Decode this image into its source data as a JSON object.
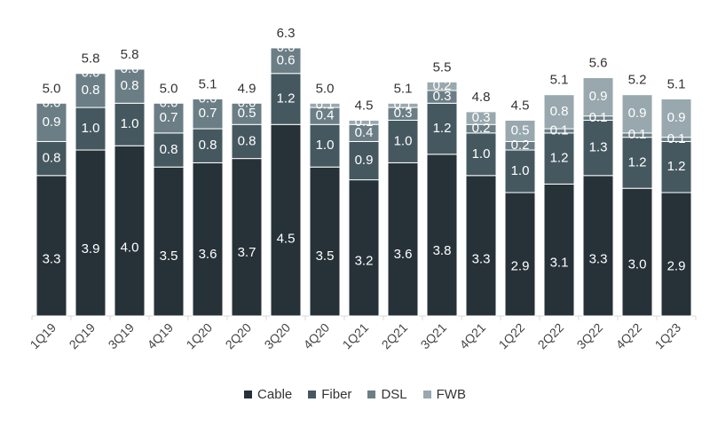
{
  "chart_data": {
    "type": "bar",
    "stacked": true,
    "categories": [
      "1Q19",
      "2Q19",
      "3Q19",
      "4Q19",
      "1Q20",
      "2Q20",
      "3Q20",
      "4Q20",
      "1Q21",
      "2Q21",
      "3Q21",
      "4Q21",
      "1Q22",
      "2Q22",
      "3Q22",
      "4Q22",
      "1Q23"
    ],
    "series": [
      {
        "name": "Cable",
        "color": "#263238",
        "values": [
          3.3,
          3.9,
          4.0,
          3.5,
          3.6,
          3.7,
          4.5,
          3.5,
          3.2,
          3.6,
          3.8,
          3.3,
          2.9,
          3.1,
          3.3,
          3.0,
          2.9
        ]
      },
      {
        "name": "Fiber",
        "color": "#46585f",
        "values": [
          0.8,
          1.0,
          1.0,
          0.8,
          0.8,
          0.8,
          1.2,
          1.0,
          0.9,
          1.0,
          1.2,
          1.0,
          1.0,
          1.2,
          1.3,
          1.2,
          1.2
        ]
      },
      {
        "name": "DSL",
        "color": "#6b7e86",
        "values": [
          0.9,
          0.8,
          0.8,
          0.7,
          0.7,
          0.5,
          0.6,
          0.4,
          0.4,
          0.3,
          0.3,
          0.2,
          0.2,
          0.1,
          0.1,
          0.1,
          0.1
        ]
      },
      {
        "name": "FWB",
        "color": "#98a8ae",
        "values": [
          0.0,
          0.0,
          0.0,
          0.0,
          0.0,
          0.0,
          0.0,
          0.1,
          0.1,
          0.1,
          0.2,
          0.3,
          0.5,
          0.8,
          0.9,
          0.9,
          0.9
        ]
      }
    ],
    "totals": [
      "5.0",
      "5.8",
      "5.8",
      "5.0",
      "5.1",
      "4.9",
      "6.3",
      "5.0",
      "4.5",
      "5.1",
      "5.5",
      "4.8",
      "4.5",
      "5.1",
      "5.6",
      "5.2",
      "5.1"
    ],
    "ylim": [
      0,
      6.8
    ],
    "grid": false,
    "legend": "bottom-center"
  }
}
